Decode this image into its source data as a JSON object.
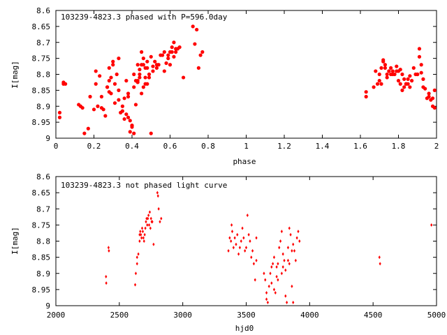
{
  "chart_data": [
    {
      "type": "scatter",
      "title": "103239-4823.3 phased with P=596.0day",
      "xlabel": "phase",
      "ylabel": "I[mag]",
      "xlim": [
        0,
        2
      ],
      "ylim": [
        9,
        8.6
      ],
      "y_inverted": true,
      "x_ticks": [
        0,
        0.2,
        0.4,
        0.6,
        0.8,
        1,
        1.2,
        1.4,
        1.6,
        1.8,
        2
      ],
      "x_tick_labels": [
        "0",
        "0.2",
        "0.4",
        "0.6",
        "0.8",
        "1",
        "1.2",
        "1.4",
        "1.6",
        "1.8",
        "2"
      ],
      "y_ticks": [
        8.6,
        8.65,
        8.7,
        8.75,
        8.8,
        8.85,
        8.9,
        8.95,
        9
      ],
      "y_tick_labels": [
        "8.6",
        "8.65",
        "8.7",
        "8.75",
        "8.8",
        "8.85",
        "8.9",
        "8.95",
        "9"
      ],
      "marker": "filled-circle",
      "color": "#ff0000",
      "grid": false,
      "series": [
        {
          "x": [
            0.02,
            0.02,
            0.04,
            0.05,
            0.04,
            0.12,
            0.13,
            0.15,
            0.14,
            0.17,
            0.18,
            0.2,
            0.21,
            0.21,
            0.23,
            0.24,
            0.24,
            0.26,
            0.25,
            0.27,
            0.28,
            0.29,
            0.28,
            0.3,
            0.3,
            0.31,
            0.32,
            0.33,
            0.33,
            0.35,
            0.34,
            0.36,
            0.37,
            0.38,
            0.38,
            0.39,
            0.4,
            0.4,
            0.41,
            0.41,
            0.42,
            0.42,
            0.43,
            0.43,
            0.44,
            0.44,
            0.45,
            0.45,
            0.46,
            0.46,
            0.47,
            0.47,
            0.48,
            0.48,
            0.49,
            0.5,
            0.5,
            0.51,
            0.51,
            0.52,
            0.53,
            0.54,
            0.55,
            0.56,
            0.57,
            0.58,
            0.59,
            0.6,
            0.6,
            0.61,
            0.62,
            0.63,
            0.63,
            0.64,
            0.65,
            0.67,
            0.72,
            0.73,
            0.74,
            0.75,
            0.76,
            0.77,
            0.38,
            0.39,
            0.37,
            0.4,
            0.36,
            0.35,
            0.47,
            0.49,
            0.44,
            0.45,
            0.46,
            0.31,
            0.29,
            0.28,
            0.27,
            0.22,
            0.33,
            0.41,
            0.43,
            0.48,
            0.53,
            0.57,
            0.59,
            0.61,
            0.62
          ],
          "y": [
            8.92,
            8.935,
            8.825,
            8.83,
            8.83,
            8.895,
            8.9,
            8.985,
            8.905,
            8.97,
            8.87,
            8.91,
            8.79,
            8.83,
            8.805,
            8.87,
            8.905,
            8.93,
            8.91,
            8.84,
            8.78,
            8.81,
            8.855,
            8.76,
            8.77,
            8.83,
            8.8,
            8.88,
            8.75,
            8.9,
            8.92,
            8.875,
            8.82,
            8.87,
            8.935,
            8.945,
            8.96,
            8.965,
            8.985,
            8.84,
            8.82,
            8.895,
            8.77,
            8.825,
            8.785,
            8.8,
            8.73,
            8.86,
            8.84,
            8.77,
            8.81,
            8.83,
            8.78,
            8.83,
            8.8,
            8.745,
            8.985,
            8.79,
            8.775,
            8.76,
            8.77,
            8.77,
            8.74,
            8.74,
            8.79,
            8.765,
            8.74,
            8.73,
            8.77,
            8.715,
            8.7,
            8.72,
            8.73,
            8.72,
            8.715,
            8.81,
            8.65,
            8.705,
            8.66,
            8.78,
            8.74,
            8.73,
            8.86,
            8.98,
            8.925,
            8.96,
            8.94,
            8.915,
            8.78,
            8.81,
            8.81,
            8.77,
            8.75,
            8.89,
            8.86,
            8.82,
            8.84,
            8.9,
            8.85,
            8.8,
            8.82,
            8.76,
            8.78,
            8.73,
            8.75,
            8.73,
            8.745
          ]
        },
        {
          "x": [
            1.63,
            1.63,
            1.67,
            1.68,
            1.69,
            1.7,
            1.71,
            1.72,
            1.72,
            1.73,
            1.74,
            1.74,
            1.75,
            1.76,
            1.76,
            1.77,
            1.78,
            1.79,
            1.8,
            1.8,
            1.81,
            1.81,
            1.82,
            1.83,
            1.83,
            1.84,
            1.85,
            1.85,
            1.86,
            1.87,
            1.88,
            1.89,
            1.9,
            1.91,
            1.91,
            1.92,
            1.92,
            1.93,
            1.94,
            1.95,
            1.96,
            1.97,
            1.98,
            1.98,
            1.99,
            1.99,
            1.7,
            1.71,
            1.73,
            1.75,
            1.77,
            1.79,
            1.82,
            1.84,
            1.86,
            1.9,
            1.93,
            1.96
          ],
          "y": [
            8.855,
            8.87,
            8.84,
            8.79,
            8.83,
            8.8,
            8.78,
            8.76,
            8.755,
            8.78,
            8.8,
            8.81,
            8.79,
            8.78,
            8.8,
            8.79,
            8.8,
            8.775,
            8.79,
            8.82,
            8.785,
            8.83,
            8.85,
            8.815,
            8.84,
            8.83,
            8.83,
            8.815,
            8.805,
            8.82,
            8.78,
            8.8,
            8.8,
            8.745,
            8.72,
            8.795,
            8.77,
            8.815,
            8.845,
            8.875,
            8.87,
            8.88,
            8.9,
            8.875,
            8.905,
            8.85,
            8.82,
            8.83,
            8.77,
            8.79,
            8.8,
            8.79,
            8.8,
            8.83,
            8.84,
            8.8,
            8.84,
            8.86
          ]
        }
      ]
    },
    {
      "type": "scatter",
      "title": "103239-4823.3 not phased light curve",
      "xlabel": "hjd0",
      "ylabel": "I[mag]",
      "xlim": [
        2000,
        5000
      ],
      "ylim": [
        9,
        8.6
      ],
      "y_inverted": true,
      "x_ticks": [
        2000,
        2500,
        3000,
        3500,
        4000,
        4500,
        5000
      ],
      "x_tick_labels": [
        "2000",
        "2500",
        "3000",
        "3500",
        "4000",
        "4500",
        "5000"
      ],
      "y_ticks": [
        8.6,
        8.65,
        8.7,
        8.75,
        8.8,
        8.85,
        8.9,
        8.95,
        9
      ],
      "y_tick_labels": [
        "8.6",
        "8.65",
        "8.7",
        "8.75",
        "8.8",
        "8.85",
        "8.9",
        "8.95",
        "9"
      ],
      "marker": "small-diamond",
      "color": "#ff0000",
      "grid": false,
      "series": [
        {
          "x": [
            2395,
            2397,
            2415,
            2418,
            2625,
            2630,
            2640,
            2650,
            2660,
            2665,
            2670,
            2680,
            2690,
            2700,
            2705,
            2710,
            2715,
            2720,
            2730,
            2740,
            2750,
            2760,
            2770,
            2800,
            2805,
            2810,
            2820,
            2830,
            2640,
            2660,
            2675,
            2685,
            2695,
            2725,
            2735,
            2745,
            2755,
            3360,
            3370,
            3380,
            3385,
            3390,
            3400,
            3410,
            3420,
            3430,
            3440,
            3450,
            3460,
            3470,
            3480,
            3490,
            3500,
            3510,
            3520,
            3530,
            3540,
            3550,
            3560,
            3570,
            3580,
            3580,
            3640,
            3650,
            3660,
            3670,
            3680,
            3690,
            3700,
            3710,
            3720,
            3730,
            3740,
            3750,
            3760,
            3770,
            3780,
            3790,
            3800,
            3810,
            3820,
            3830,
            3840,
            3850,
            3860,
            3870,
            3880,
            3890,
            3900,
            3910,
            3920,
            3720,
            3750,
            3780,
            3810,
            3840,
            3870,
            3660,
            3700,
            3740,
            3790,
            3830,
            3860,
            4550,
            4555,
            4960
          ],
          "y": [
            8.91,
            8.93,
            8.82,
            8.83,
            8.935,
            8.9,
            8.87,
            8.84,
            8.8,
            8.77,
            8.78,
            8.76,
            8.79,
            8.78,
            8.76,
            8.74,
            8.73,
            8.75,
            8.72,
            8.71,
            8.73,
            8.74,
            8.81,
            8.65,
            8.66,
            8.7,
            8.74,
            8.73,
            8.85,
            8.78,
            8.79,
            8.77,
            8.8,
            8.73,
            8.75,
            8.76,
            8.74,
            8.83,
            8.79,
            8.8,
            8.75,
            8.77,
            8.82,
            8.79,
            8.81,
            8.78,
            8.84,
            8.82,
            8.8,
            8.76,
            8.79,
            8.83,
            8.82,
            8.72,
            8.78,
            8.8,
            8.85,
            8.83,
            8.87,
            8.92,
            8.86,
            8.79,
            8.9,
            8.92,
            8.98,
            8.99,
            8.94,
            8.9,
            8.88,
            8.87,
            8.85,
            8.96,
            8.88,
            8.87,
            8.82,
            8.8,
            8.77,
            8.84,
            8.86,
            8.97,
            8.99,
            8.82,
            8.76,
            8.78,
            8.94,
            8.99,
            8.83,
            8.86,
            8.79,
            8.77,
            8.8,
            8.95,
            8.92,
            8.9,
            8.89,
            8.87,
            8.81,
            8.96,
            8.93,
            8.91,
            8.88,
            8.86,
            8.83,
            8.85,
            8.87,
            8.75
          ]
        }
      ]
    }
  ]
}
